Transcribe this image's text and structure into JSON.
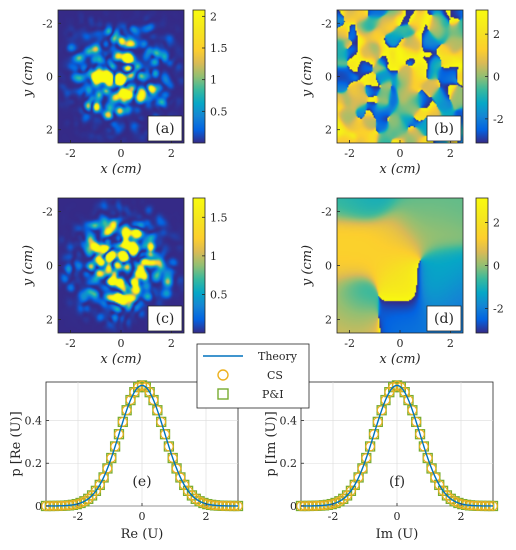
{
  "chart_data": [
    {
      "type": "heatmap",
      "panel_label": "(a)",
      "xlabel": "x (cm)",
      "ylabel": "y (cm)",
      "xlim": [
        -2.5,
        2.5
      ],
      "ylim": [
        -2.5,
        2.5
      ],
      "x_ticks": [
        "-2",
        "0",
        "2"
      ],
      "y_ticks": [
        "-2",
        "0",
        "2"
      ],
      "colorbar_ticks": [
        "0.5",
        "1",
        "1.5",
        "2"
      ],
      "colorbar_range": [
        0,
        2.1
      ],
      "pattern": "speckle intensity, Gaussian envelope"
    },
    {
      "type": "heatmap",
      "panel_label": "(b)",
      "xlabel": "x (cm)",
      "ylabel": "y (cm)",
      "xlim": [
        -2.5,
        2.5
      ],
      "ylim": [
        -2.5,
        2.5
      ],
      "x_ticks": [
        "-2",
        "0",
        "2"
      ],
      "y_ticks": [
        "-2",
        "0",
        "2"
      ],
      "colorbar_ticks": [
        "-2",
        "0",
        "2"
      ],
      "colorbar_range": [
        -3.14,
        3.14
      ],
      "pattern": "fine speckle phase"
    },
    {
      "type": "heatmap",
      "panel_label": "(c)",
      "xlabel": "x (cm)",
      "ylabel": "y (cm)",
      "xlim": [
        -2.5,
        2.5
      ],
      "ylim": [
        -2.5,
        2.5
      ],
      "x_ticks": [
        "-2",
        "0",
        "2"
      ],
      "y_ticks": [
        "-2",
        "0",
        "2"
      ],
      "colorbar_ticks": [
        "0.5",
        "1",
        "1.5"
      ],
      "colorbar_range": [
        0,
        1.75
      ],
      "pattern": "speckle intensity, Gaussian envelope"
    },
    {
      "type": "heatmap",
      "panel_label": "(d)",
      "xlabel": "x (cm)",
      "ylabel": "y (cm)",
      "xlim": [
        -2.5,
        2.5
      ],
      "ylim": [
        -2.5,
        2.5
      ],
      "x_ticks": [
        "-2",
        "0",
        "2"
      ],
      "y_ticks": [
        "-2",
        "0",
        "2"
      ],
      "colorbar_ticks": [
        "-2",
        "0",
        "2"
      ],
      "colorbar_range": [
        -3.14,
        3.14
      ],
      "pattern": "coarse smooth phase"
    },
    {
      "type": "line",
      "panel_label": "(e)",
      "xlabel": "Re (U)",
      "ylabel": "p [Re (U)]",
      "xlim": [
        -3,
        3
      ],
      "ylim": [
        0,
        0.58
      ],
      "x_ticks": [
        "-2",
        "0",
        "2"
      ],
      "y_ticks": [
        "0",
        "0.2",
        "0.4"
      ],
      "grid": true,
      "series": [
        {
          "name": "Theory",
          "kind": "line",
          "distribution": "gaussian",
          "mean": 0,
          "sigma": 0.7071,
          "peak": 0.564
        },
        {
          "name": "CS",
          "kind": "circle-markers",
          "x_start": -3,
          "x_end": 3,
          "count": 51
        },
        {
          "name": "P&I",
          "kind": "square-markers",
          "x_start": -3,
          "x_end": 3,
          "count": 51
        }
      ]
    },
    {
      "type": "line",
      "panel_label": "(f)",
      "xlabel": "Im (U)",
      "ylabel": "p [Im (U)]",
      "xlim": [
        -3,
        3
      ],
      "ylim": [
        0,
        0.58
      ],
      "x_ticks": [
        "-2",
        "0",
        "2"
      ],
      "y_ticks": [
        "0",
        "0.2",
        "0.4"
      ],
      "grid": true,
      "series": [
        {
          "name": "Theory",
          "kind": "line",
          "distribution": "gaussian",
          "mean": 0,
          "sigma": 0.7071,
          "peak": 0.564
        },
        {
          "name": "CS",
          "kind": "circle-markers",
          "x_start": -3,
          "x_end": 3,
          "count": 51
        },
        {
          "name": "P&I",
          "kind": "square-markers",
          "x_start": -3,
          "x_end": 3,
          "count": 51
        }
      ]
    }
  ],
  "legend": {
    "placement": "top-center, between panels (e) and (f)",
    "entries": [
      "Theory",
      "CS",
      "P&I"
    ]
  },
  "colors": {
    "theory_line": "#0072BD",
    "cs_marker": "#EDB120",
    "pi_marker": "#77AC30",
    "parula_low": "#352A87",
    "parula_high": "#F9FB0E"
  }
}
